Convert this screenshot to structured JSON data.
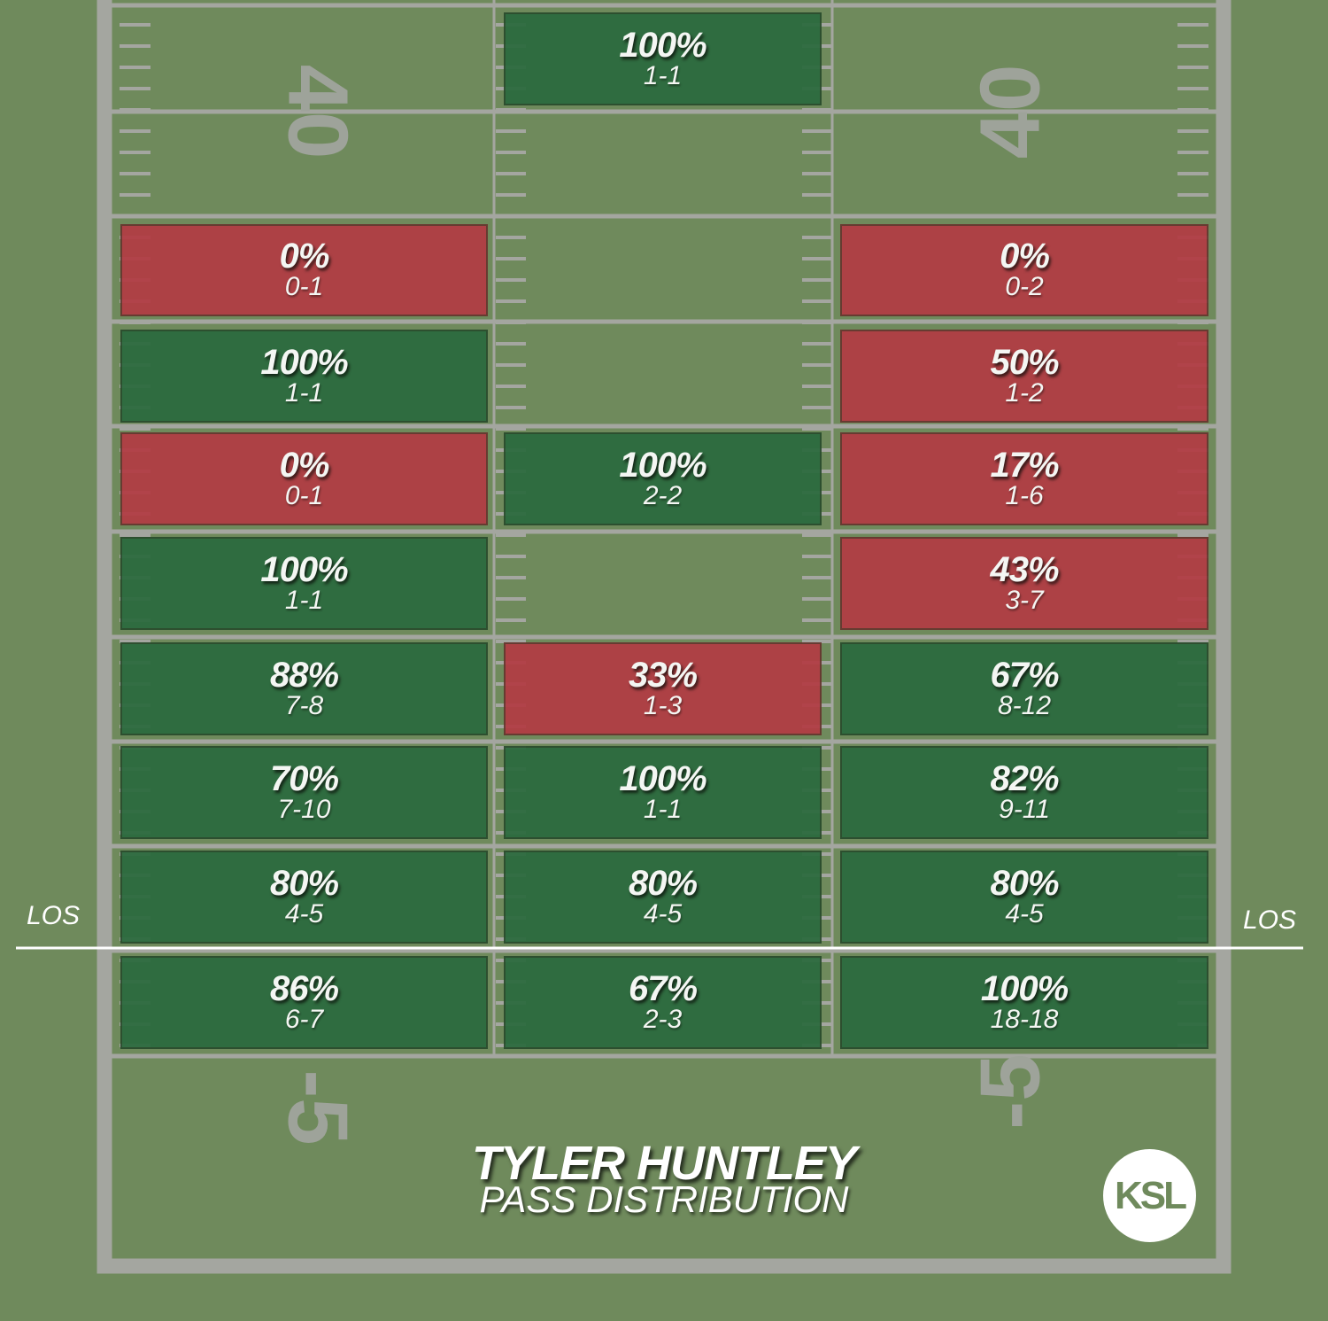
{
  "chart_data": {
    "type": "heatmap",
    "title": "TYLER HUNTLEY",
    "subtitle": "PASS DISTRIBUTION",
    "line_of_scrimmage_label": "LOS",
    "yard_markers": [
      "40",
      "-5"
    ],
    "columns": [
      "left",
      "middle",
      "right"
    ],
    "colors": {
      "completion_success": "#2b6a3e",
      "completion_fail": "#b23c44"
    },
    "cells": [
      {
        "zone": "40 yards",
        "column": "middle",
        "pct": "100%",
        "record": "1-1",
        "good": true
      },
      {
        "zone": "row 1",
        "column": "left",
        "pct": "0%",
        "record": "0-1",
        "good": false
      },
      {
        "zone": "row 1",
        "column": "right",
        "pct": "0%",
        "record": "0-2",
        "good": false
      },
      {
        "zone": "row 2",
        "column": "left",
        "pct": "100%",
        "record": "1-1",
        "good": true
      },
      {
        "zone": "row 2",
        "column": "right",
        "pct": "50%",
        "record": "1-2",
        "good": false
      },
      {
        "zone": "row 3",
        "column": "left",
        "pct": "0%",
        "record": "0-1",
        "good": false
      },
      {
        "zone": "row 3",
        "column": "middle",
        "pct": "100%",
        "record": "2-2",
        "good": true
      },
      {
        "zone": "row 3",
        "column": "right",
        "pct": "17%",
        "record": "1-6",
        "good": false
      },
      {
        "zone": "row 4",
        "column": "left",
        "pct": "100%",
        "record": "1-1",
        "good": true
      },
      {
        "zone": "row 4",
        "column": "right",
        "pct": "43%",
        "record": "3-7",
        "good": false
      },
      {
        "zone": "row 5",
        "column": "left",
        "pct": "88%",
        "record": "7-8",
        "good": true
      },
      {
        "zone": "row 5",
        "column": "middle",
        "pct": "33%",
        "record": "1-3",
        "good": false
      },
      {
        "zone": "row 5",
        "column": "right",
        "pct": "67%",
        "record": "8-12",
        "good": true
      },
      {
        "zone": "row 6",
        "column": "left",
        "pct": "70%",
        "record": "7-10",
        "good": true
      },
      {
        "zone": "row 6",
        "column": "middle",
        "pct": "100%",
        "record": "1-1",
        "good": true
      },
      {
        "zone": "row 6",
        "column": "right",
        "pct": "82%",
        "record": "9-11",
        "good": true
      },
      {
        "zone": "row 7",
        "column": "left",
        "pct": "80%",
        "record": "4-5",
        "good": true
      },
      {
        "zone": "row 7",
        "column": "middle",
        "pct": "80%",
        "record": "4-5",
        "good": true
      },
      {
        "zone": "row 7",
        "column": "right",
        "pct": "80%",
        "record": "4-5",
        "good": true
      },
      {
        "zone": "row 8",
        "column": "left",
        "pct": "86%",
        "record": "6-7",
        "good": true
      },
      {
        "zone": "row 8",
        "column": "middle",
        "pct": "67%",
        "record": "2-3",
        "good": true
      },
      {
        "zone": "row 8",
        "column": "right",
        "pct": "100%",
        "record": "18-18",
        "good": true
      }
    ]
  },
  "logo_text": "KSL"
}
